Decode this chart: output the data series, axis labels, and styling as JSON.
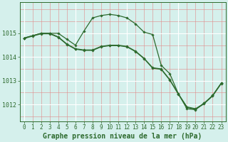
{
  "title": "Graphe pression niveau de la mer (hPa)",
  "bg_color": "#d5f0ec",
  "line_color": "#2d6a2d",
  "xlim": [
    -0.5,
    23.5
  ],
  "ylim": [
    1011.3,
    1016.3
  ],
  "yticks": [
    1012,
    1013,
    1014,
    1015
  ],
  "xticks": [
    0,
    1,
    2,
    3,
    4,
    5,
    6,
    7,
    8,
    9,
    10,
    11,
    12,
    13,
    14,
    15,
    16,
    17,
    18,
    19,
    20,
    21,
    22,
    23
  ],
  "series1": [
    1014.8,
    1014.9,
    1015.0,
    1015.0,
    1015.0,
    1014.75,
    1014.5,
    1015.1,
    1015.65,
    1015.75,
    1015.8,
    1015.75,
    1015.65,
    1015.4,
    1015.05,
    1014.95,
    1013.65,
    1013.3,
    1012.45,
    1011.82,
    1011.78,
    1012.05,
    1012.38,
    1012.9
  ],
  "series2": [
    1014.8,
    1014.9,
    1015.0,
    1015.0,
    1014.85,
    1014.55,
    1014.35,
    1014.3,
    1014.3,
    1014.45,
    1014.5,
    1014.5,
    1014.45,
    1014.25,
    1013.95,
    1013.55,
    1013.5,
    1013.05,
    1012.45,
    1011.9,
    1011.82,
    1012.05,
    1012.38,
    1012.9
  ],
  "series3": [
    1014.78,
    1014.88,
    1014.98,
    1014.98,
    1014.83,
    1014.53,
    1014.33,
    1014.28,
    1014.28,
    1014.43,
    1014.48,
    1014.48,
    1014.43,
    1014.23,
    1013.93,
    1013.53,
    1013.48,
    1013.03,
    1012.43,
    1011.88,
    1011.8,
    1012.03,
    1012.36,
    1012.88
  ],
  "ylabel_fontsize": 6,
  "xlabel_fontsize": 5.5,
  "title_fontsize": 7
}
